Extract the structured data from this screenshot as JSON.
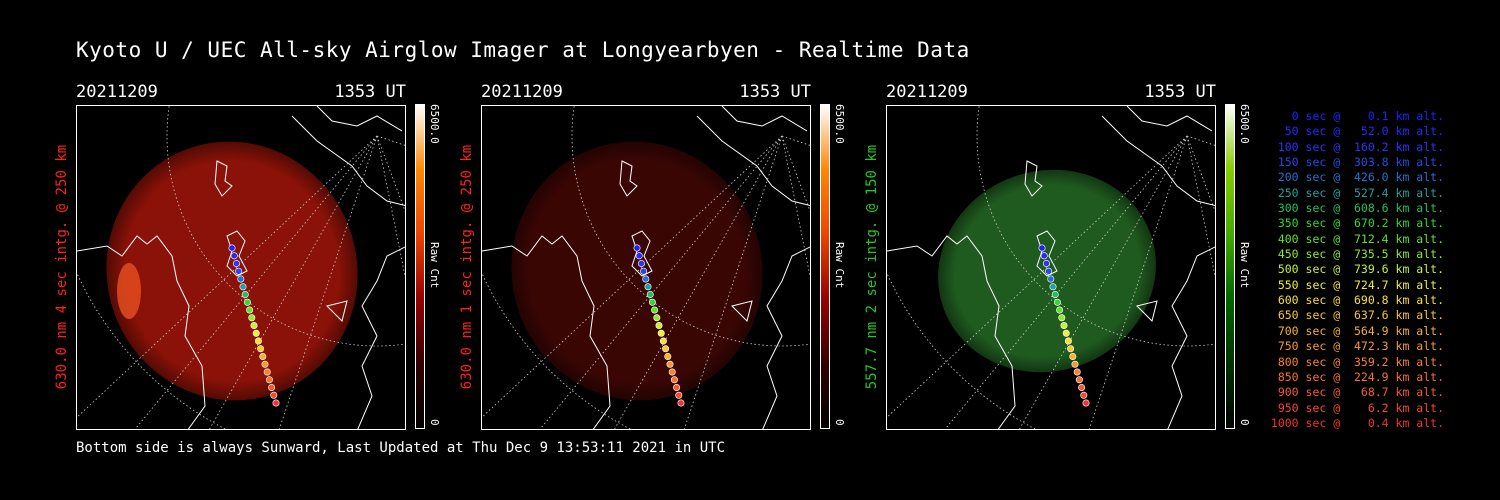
{
  "title": "Kyoto U / UEC All-sky Airglow Imager at Longyearbyen - Realtime Data",
  "footer": "Bottom side is always Sunward, Last Updated at Thu Dec  9 13:53:11 2021 in UTC",
  "colors": {
    "red": "#ff2020",
    "green": "#22c822",
    "white": "#ffffff"
  },
  "panels": [
    {
      "date": "20211209",
      "time": "1353 UT",
      "ylabel": "630.0 nm 4 sec intg. @ 250 km",
      "label_color": "#ff2020",
      "cbar_max": "6500.0",
      "cbar_min": "0",
      "cbar_unit": "Raw Cnt",
      "emission": "red-bright"
    },
    {
      "date": "20211209",
      "time": "1353 UT",
      "ylabel": "630.0 nm 1 sec intg. @ 250 km",
      "label_color": "#ff2020",
      "cbar_max": "6500.0",
      "cbar_min": "0",
      "cbar_unit": "Raw Cnt",
      "emission": "red-dim"
    },
    {
      "date": "20211209",
      "time": "1353 UT",
      "ylabel": "557.7 nm 2 sec intg. @ 150 km",
      "label_color": "#22c822",
      "cbar_max": "6500.0",
      "cbar_min": "0",
      "cbar_unit": "Raw Cnt",
      "emission": "green"
    }
  ],
  "legend": [
    {
      "text": "0 sec @    0.1 km alt.",
      "color": "#2020ff"
    },
    {
      "text": "50 sec @   52.0 km alt.",
      "color": "#2828ff"
    },
    {
      "text": "100 sec @  160.2 km alt.",
      "color": "#3030ff"
    },
    {
      "text": "150 sec @  303.8 km alt.",
      "color": "#2848e8"
    },
    {
      "text": "200 sec @  426.0 km alt.",
      "color": "#2870d0"
    },
    {
      "text": "250 sec @  527.4 km alt.",
      "color": "#20a0a0"
    },
    {
      "text": "300 sec @  608.6 km alt.",
      "color": "#20c060"
    },
    {
      "text": "350 sec @  670.2 km alt.",
      "color": "#30d830"
    },
    {
      "text": "400 sec @  712.4 km alt.",
      "color": "#60e030"
    },
    {
      "text": "450 sec @  735.5 km alt.",
      "color": "#90e830"
    },
    {
      "text": "500 sec @  739.6 km alt.",
      "color": "#c8f030"
    },
    {
      "text": "550 sec @  724.7 km alt.",
      "color": "#f0f030"
    },
    {
      "text": "600 sec @  690.8 km alt.",
      "color": "#f8e030"
    },
    {
      "text": "650 sec @  637.6 km alt.",
      "color": "#f8c830"
    },
    {
      "text": "700 sec @  564.9 km alt.",
      "color": "#f8b030"
    },
    {
      "text": "750 sec @  472.3 km alt.",
      "color": "#f89830"
    },
    {
      "text": "800 sec @  359.2 km alt.",
      "color": "#f88030"
    },
    {
      "text": "850 sec @  224.9 km alt.",
      "color": "#f87030"
    },
    {
      "text": "900 sec @   68.7 km alt.",
      "color": "#f85830"
    },
    {
      "text": "950 sec @    6.2 km alt.",
      "color": "#f84830"
    },
    {
      "text": "1000 sec @    0.4 km alt.",
      "color": "#f83030"
    }
  ]
}
